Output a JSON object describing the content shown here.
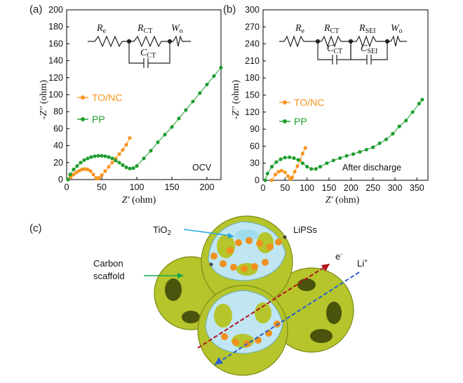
{
  "chart_data": [
    {
      "type": "scatter",
      "panel_label": "(a)",
      "xlabel_sym": "Z'",
      "xlabel_unit": " (ohm)",
      "ylabel_sym": "-Z''",
      "ylabel_unit": " (ohm)",
      "xlim": [
        0,
        220
      ],
      "ylim": [
        0,
        200
      ],
      "xticks": [
        0,
        50,
        100,
        150,
        200
      ],
      "yticks": [
        0,
        20,
        40,
        60,
        80,
        100,
        120,
        140,
        160,
        180,
        200
      ],
      "annotation": "OCV",
      "legend_location": "middle-left",
      "circuit": {
        "elements": [
          {
            "sym": "R",
            "sub": "e"
          },
          {
            "sym": "R",
            "sub": "CT"
          },
          {
            "sym": "C",
            "sub": "CT"
          },
          {
            "sym": "W",
            "sub": "o"
          }
        ]
      },
      "series": [
        {
          "name": "TO/NC",
          "color": "#f7941d",
          "points": [
            [
              2,
              0
            ],
            [
              6,
              3
            ],
            [
              10,
              6
            ],
            [
              14,
              8.5
            ],
            [
              18,
              10.5
            ],
            [
              22,
              12
            ],
            [
              26,
              12.5
            ],
            [
              30,
              12
            ],
            [
              34,
              10
            ],
            [
              38,
              6
            ],
            [
              42,
              2
            ],
            [
              44,
              1
            ],
            [
              46,
              2
            ],
            [
              50,
              5
            ],
            [
              55,
              10
            ],
            [
              60,
              15
            ],
            [
              65,
              20
            ],
            [
              70,
              25
            ],
            [
              75,
              30
            ],
            [
              80,
              35
            ],
            [
              85,
              41
            ],
            [
              90,
              49
            ]
          ]
        },
        {
          "name": "PP",
          "color": "#1e9e2f",
          "points": [
            [
              2,
              0
            ],
            [
              5,
              6
            ],
            [
              10,
              12
            ],
            [
              15,
              16
            ],
            [
              20,
              20
            ],
            [
              25,
              23
            ],
            [
              30,
              25
            ],
            [
              35,
              26.5
            ],
            [
              40,
              27.5
            ],
            [
              45,
              28
            ],
            [
              50,
              28
            ],
            [
              55,
              27.5
            ],
            [
              60,
              26.5
            ],
            [
              65,
              25
            ],
            [
              70,
              22.5
            ],
            [
              75,
              20
            ],
            [
              80,
              17
            ],
            [
              85,
              14.5
            ],
            [
              90,
              13
            ],
            [
              95,
              13.5
            ],
            [
              100,
              16
            ],
            [
              110,
              25
            ],
            [
              120,
              34
            ],
            [
              130,
              44
            ],
            [
              140,
              53
            ],
            [
              150,
              62
            ],
            [
              160,
              72
            ],
            [
              170,
              82
            ],
            [
              180,
              92
            ],
            [
              190,
              102
            ],
            [
              200,
              112
            ],
            [
              210,
              122
            ],
            [
              220,
              132
            ]
          ]
        }
      ]
    },
    {
      "type": "scatter",
      "panel_label": "(b)",
      "xlabel_sym": "Z'",
      "xlabel_unit": " (ohm)",
      "ylabel_sym": "-Z''",
      "ylabel_unit": " (ohm)",
      "xlim": [
        0,
        375
      ],
      "ylim": [
        0,
        300
      ],
      "xticks": [
        0,
        50,
        100,
        150,
        200,
        250,
        300,
        350
      ],
      "yticks": [
        0,
        30,
        60,
        90,
        120,
        150,
        180,
        210,
        240,
        270,
        300
      ],
      "annotation": "After discharge",
      "legend_location": "middle-left",
      "circuit": {
        "elements": [
          {
            "sym": "R",
            "sub": "e"
          },
          {
            "sym": "R",
            "sub": "CT"
          },
          {
            "sym": "C",
            "sub": "CT"
          },
          {
            "sym": "R",
            "sub": "SEI"
          },
          {
            "sym": "C",
            "sub": "SEI"
          },
          {
            "sym": "W",
            "sub": "o"
          }
        ]
      },
      "series": [
        {
          "name": "TO/NC",
          "color": "#f7941d",
          "points": [
            [
              20,
              0
            ],
            [
              28,
              10
            ],
            [
              35,
              15
            ],
            [
              42,
              17
            ],
            [
              50,
              14
            ],
            [
              57,
              7
            ],
            [
              62,
              2
            ],
            [
              66,
              5
            ],
            [
              72,
              15
            ],
            [
              78,
              25
            ],
            [
              84,
              35
            ],
            [
              90,
              47
            ],
            [
              96,
              57
            ]
          ]
        },
        {
          "name": "PP",
          "color": "#1e9e2f",
          "points": [
            [
              5,
              0
            ],
            [
              10,
              12
            ],
            [
              20,
              24
            ],
            [
              30,
              32
            ],
            [
              40,
              37
            ],
            [
              50,
              40
            ],
            [
              60,
              40.5
            ],
            [
              70,
              39
            ],
            [
              80,
              36
            ],
            [
              90,
              30
            ],
            [
              100,
              24
            ],
            [
              110,
              20
            ],
            [
              120,
              20
            ],
            [
              130,
              24
            ],
            [
              145,
              30
            ],
            [
              160,
              35
            ],
            [
              175,
              39
            ],
            [
              190,
              43
            ],
            [
              205,
              46
            ],
            [
              220,
              50
            ],
            [
              235,
              54
            ],
            [
              250,
              58
            ],
            [
              265,
              65
            ],
            [
              280,
              72
            ],
            [
              295,
              82
            ],
            [
              310,
              95
            ],
            [
              325,
              105
            ],
            [
              340,
              120
            ],
            [
              355,
              135
            ],
            [
              362,
              142
            ]
          ]
        }
      ]
    }
  ],
  "illustration": {
    "panel_label": "(c)",
    "labels": {
      "tio2": "TiO",
      "tio2_sub": "2",
      "lipss": "LiPSs",
      "carbon_line1": "Carbon",
      "carbon_line2": "scaffold",
      "electron": "e",
      "electron_sup": "-",
      "lithium": "Li",
      "lithium_sup": "+"
    },
    "colors": {
      "shell": "#b5c52b",
      "shell_dark": "#7c8a16",
      "inner": "#bfe6f2",
      "particle": "#f0901e",
      "electron_arrow": "#b4121b",
      "lithium_arrow": "#2a5fd1",
      "tio2_pointer": "#29a8e0",
      "carbon_pointer": "#17a34a"
    }
  }
}
